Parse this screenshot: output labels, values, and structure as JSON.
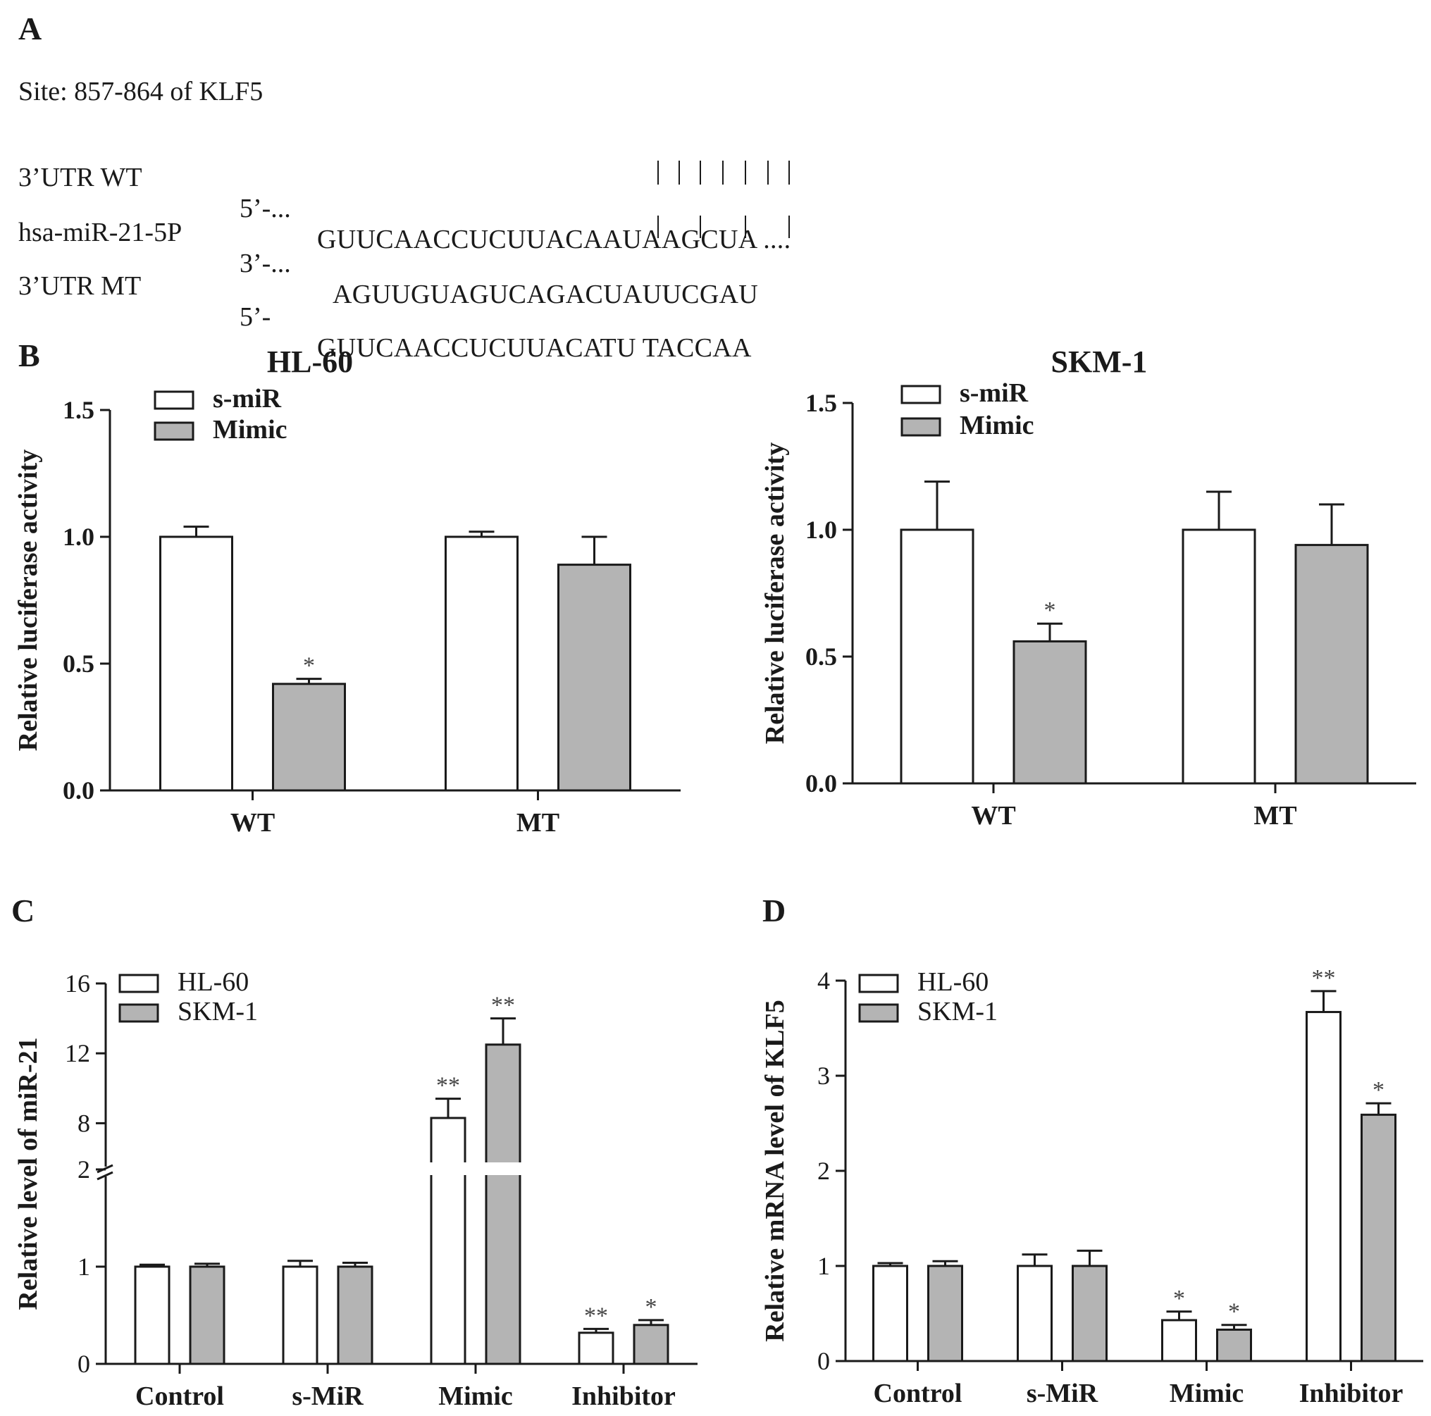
{
  "panel_a": {
    "letter": "A",
    "site": "Site: 857-864 of KLF5",
    "rows": [
      {
        "label": "3’UTR WT",
        "prime": "5’-...",
        "seq": "GUUCAACCUCUUACAAUAAGCUA ...."
      },
      {
        "label": "hsa-miR-21-5P",
        "prime": "3’-...",
        "seq": "AGUUGUAGUCAGACUAUUCGAU"
      },
      {
        "label": "3’UTR MT",
        "prime": "5’-",
        "seq": "GUUCAACCUCUUACATU TACCAA"
      }
    ]
  },
  "panel_b": {
    "letter": "B"
  },
  "panel_c": {
    "letter": "C"
  },
  "panel_d": {
    "letter": "D"
  },
  "colors": {
    "open_bar": "#ffffff",
    "gray_bar": "#b4b4b4",
    "ink": "#1a1a1a"
  },
  "chart_data": [
    {
      "type": "bar",
      "title": "HL-60",
      "categories": [
        "WT",
        "MT"
      ],
      "ylabel": "Relative luciferase activity",
      "ylim": [
        0,
        1.5
      ],
      "yticks": [
        "0.0",
        "0.5",
        "1.0",
        "1.5"
      ],
      "legend_position": "top-left",
      "series": [
        {
          "name": "s-miR",
          "values": [
            1.0,
            1.0
          ],
          "errors": [
            0.04,
            0.02
          ],
          "significance": [
            "",
            ""
          ]
        },
        {
          "name": "Mimic",
          "values": [
            0.42,
            0.89
          ],
          "errors": [
            0.02,
            0.11
          ],
          "significance": [
            "*",
            ""
          ]
        }
      ]
    },
    {
      "type": "bar",
      "title": "SKM-1",
      "categories": [
        "WT",
        "MT"
      ],
      "ylabel": "Relative luciferase activity",
      "ylim": [
        0,
        1.5
      ],
      "yticks": [
        "0.0",
        "0.5",
        "1.0",
        "1.5"
      ],
      "legend_position": "top-left",
      "series": [
        {
          "name": "s-miR",
          "values": [
            1.0,
            1.0
          ],
          "errors": [
            0.19,
            0.15
          ],
          "significance": [
            "",
            ""
          ]
        },
        {
          "name": "Mimic",
          "values": [
            0.56,
            0.94
          ],
          "errors": [
            0.07,
            0.16
          ],
          "significance": [
            "*",
            ""
          ]
        }
      ]
    },
    {
      "type": "bar",
      "categories": [
        "Control",
        "s-MiR",
        "Mimic",
        "Inhibitor"
      ],
      "ylabel": "Relative level of miR-21",
      "ylim": [
        0,
        16
      ],
      "y_axis_break": [
        2,
        6
      ],
      "yticks": [
        "0",
        "1",
        "2",
        "8",
        "12",
        "16"
      ],
      "legend_position": "top-left",
      "series": [
        {
          "name": "HL-60",
          "values": [
            1.0,
            1.0,
            8.3,
            0.32
          ],
          "errors": [
            0.02,
            0.06,
            1.1,
            0.04
          ],
          "significance": [
            "",
            "",
            "**",
            "**"
          ]
        },
        {
          "name": "SKM-1",
          "values": [
            1.0,
            1.0,
            12.5,
            0.4
          ],
          "errors": [
            0.03,
            0.04,
            1.5,
            0.05
          ],
          "significance": [
            "",
            "",
            "**",
            "*"
          ]
        }
      ]
    },
    {
      "type": "bar",
      "categories": [
        "Control",
        "s-MiR",
        "Mimic",
        "Inhibitor"
      ],
      "ylabel": "Relative mRNA level of KLF5",
      "ylim": [
        0,
        4
      ],
      "yticks": [
        "0",
        "1",
        "2",
        "3",
        "4"
      ],
      "legend_position": "top-left",
      "series": [
        {
          "name": "HL-60",
          "values": [
            1.0,
            1.0,
            0.43,
            3.67
          ],
          "errors": [
            0.03,
            0.12,
            0.09,
            0.22
          ],
          "significance": [
            "",
            "",
            "*",
            "**"
          ]
        },
        {
          "name": "SKM-1",
          "values": [
            1.0,
            1.0,
            0.33,
            2.59
          ],
          "errors": [
            0.05,
            0.16,
            0.05,
            0.12
          ],
          "significance": [
            "",
            "",
            "*",
            "*"
          ]
        }
      ]
    }
  ]
}
